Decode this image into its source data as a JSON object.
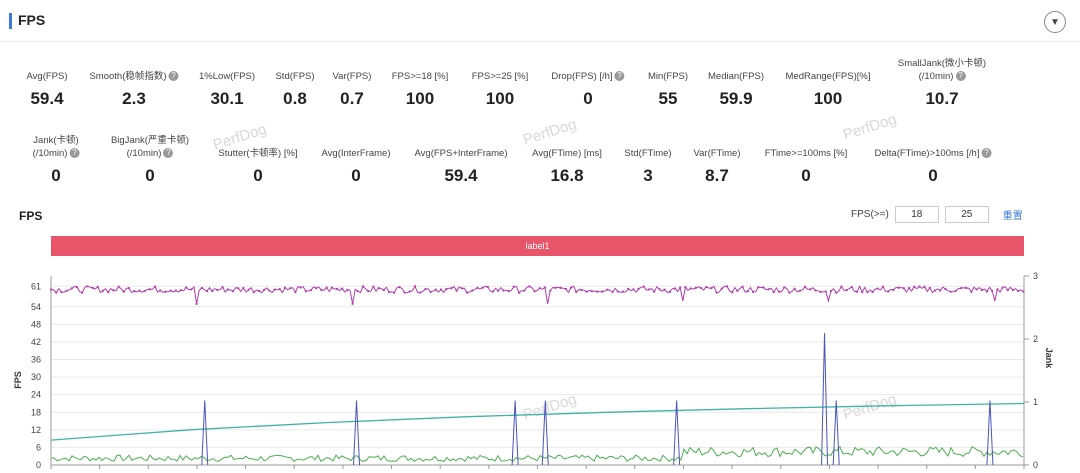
{
  "header": {
    "title": "FPS",
    "collapse_icon": "chevron-down-icon"
  },
  "metrics_row1": [
    {
      "label": "Avg(FPS)",
      "value": "59.4"
    },
    {
      "label": "Smooth(稳帧指数)",
      "value": "2.3",
      "help": true
    },
    {
      "label": "1%Low(FPS)",
      "value": "30.1"
    },
    {
      "label": "Std(FPS)",
      "value": "0.8"
    },
    {
      "label": "Var(FPS)",
      "value": "0.7"
    },
    {
      "label": "FPS>=18 [%]",
      "value": "100"
    },
    {
      "label": "FPS>=25 [%]",
      "value": "100"
    },
    {
      "label": "Drop(FPS) [/h]",
      "value": "0",
      "help": true
    },
    {
      "label": "Min(FPS)",
      "value": "55"
    },
    {
      "label": "Median(FPS)",
      "value": "59.9"
    },
    {
      "label": "MedRange(FPS)[%]",
      "value": "100"
    },
    {
      "label": "SmallJank(微小卡顿)",
      "label2": "(/10min)",
      "value": "10.7",
      "help": true
    }
  ],
  "metrics_row2": [
    {
      "label": "Jank(卡顿)",
      "label2": "(/10min)",
      "value": "0",
      "help": true
    },
    {
      "label": "BigJank(严重卡顿)",
      "label2": "(/10min)",
      "value": "0",
      "help": true
    },
    {
      "label": "Stutter(卡顿率) [%]",
      "value": "0"
    },
    {
      "label": "Avg(InterFrame)",
      "value": "0"
    },
    {
      "label": "Avg(FPS+InterFrame)",
      "value": "59.4"
    },
    {
      "label": "Avg(FTime) [ms]",
      "value": "16.8"
    },
    {
      "label": "Std(FTime)",
      "value": "3"
    },
    {
      "label": "Var(FTime)",
      "value": "8.7"
    },
    {
      "label": "FTime>=100ms [%]",
      "value": "0"
    },
    {
      "label": "Delta(FTime)>100ms [/h]",
      "value": "0",
      "help": true
    }
  ],
  "chart_section": {
    "title": "FPS",
    "filter_label": "FPS(>=)",
    "filter_value_1": "18",
    "filter_value_2": "25",
    "reset_label": "重置",
    "band_label": "label1",
    "watermark": "PerfDog"
  },
  "chart_data": {
    "type": "line",
    "ylabel": "FPS",
    "y2label": "Jank",
    "y_ticks": [
      0,
      6,
      12,
      18,
      24,
      30,
      36,
      42,
      48,
      54,
      61
    ],
    "y2_ticks": [
      0,
      1,
      2,
      3
    ],
    "ylim": [
      0,
      64
    ],
    "y2lim": [
      0,
      3
    ],
    "grid": true,
    "series": [
      {
        "name": "",
        "color": "#b23cb0",
        "desc": "fps",
        "base": 60,
        "dips": [
          [
            0.15,
            55
          ],
          [
            0.31,
            55
          ],
          [
            0.51,
            55
          ],
          [
            0.65,
            56
          ],
          [
            0.8,
            56
          ],
          [
            0.97,
            56
          ]
        ]
      },
      {
        "name": "",
        "color": "#40b4a4",
        "desc": "trend",
        "values": [
          8.5,
          12,
          14.5,
          16.5,
          18,
          19.2,
          20.2,
          21
        ]
      },
      {
        "name": "",
        "color": "#4a55b8",
        "desc": "jank_spikes",
        "spikes": [
          [
            0.158,
            22
          ],
          [
            0.314,
            22
          ],
          [
            0.477,
            22
          ],
          [
            0.508,
            22
          ],
          [
            0.643,
            22
          ],
          [
            0.795,
            45
          ],
          [
            0.807,
            22
          ],
          [
            0.965,
            22
          ]
        ]
      },
      {
        "name": "",
        "color": "#4caf50",
        "desc": "frametime"
      }
    ]
  }
}
